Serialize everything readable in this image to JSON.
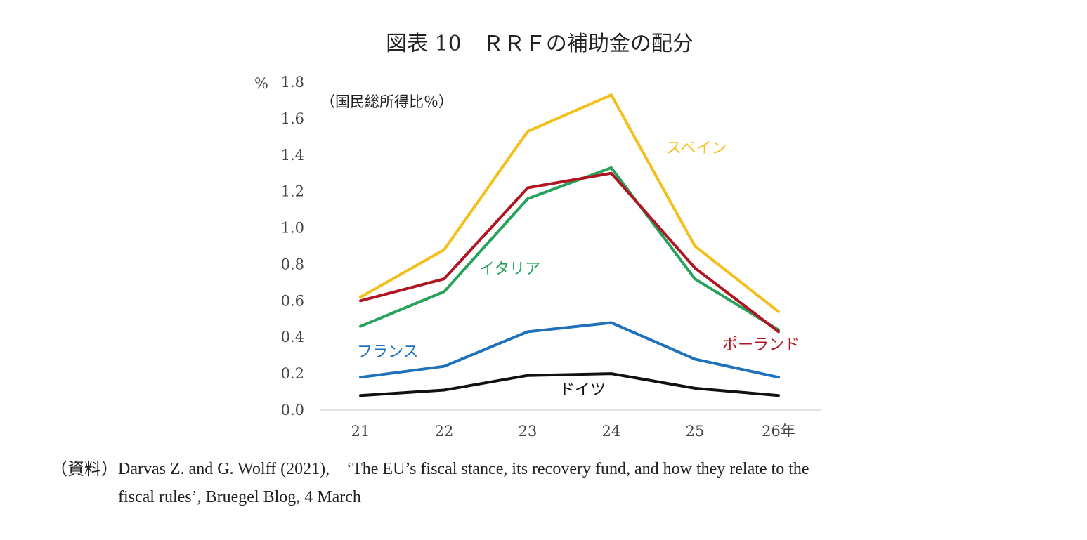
{
  "chart_data": {
    "type": "line",
    "title": "図表 10　ＲＲＦの補助金の配分",
    "y_unit": "%",
    "note": "（国民総所得比％）",
    "categories": [
      "21",
      "22",
      "23",
      "24",
      "25",
      "26年"
    ],
    "ylim": [
      0,
      1.8
    ],
    "yticks": [
      "0.0",
      "0.2",
      "0.4",
      "0.6",
      "0.8",
      "1.0",
      "1.2",
      "1.4",
      "1.6",
      "1.8"
    ],
    "series": [
      {
        "name": "スペイン",
        "color": "#F4BF1B",
        "values": [
          0.62,
          0.88,
          1.53,
          1.73,
          0.9,
          0.54
        ]
      },
      {
        "name": "イタリア",
        "color": "#27A25B",
        "values": [
          0.46,
          0.65,
          1.16,
          1.33,
          0.72,
          0.44
        ]
      },
      {
        "name": "ポーランド",
        "color": "#B01622",
        "values": [
          0.6,
          0.72,
          1.22,
          1.3,
          0.78,
          0.43
        ]
      },
      {
        "name": "フランス",
        "color": "#1F72BA",
        "values": [
          0.18,
          0.24,
          0.43,
          0.48,
          0.28,
          0.18
        ]
      },
      {
        "name": "ドイツ",
        "color": "#111111",
        "values": [
          0.08,
          0.11,
          0.19,
          0.2,
          0.12,
          0.08
        ]
      }
    ]
  },
  "source": {
    "prefix": "（資料）",
    "line1": "Darvas Z. and G. Wolff (2021),　‘The EU’s fiscal stance, its recovery fund, and how they relate to the",
    "line2": "fiscal rules’, Bruegel Blog, 4 March"
  }
}
